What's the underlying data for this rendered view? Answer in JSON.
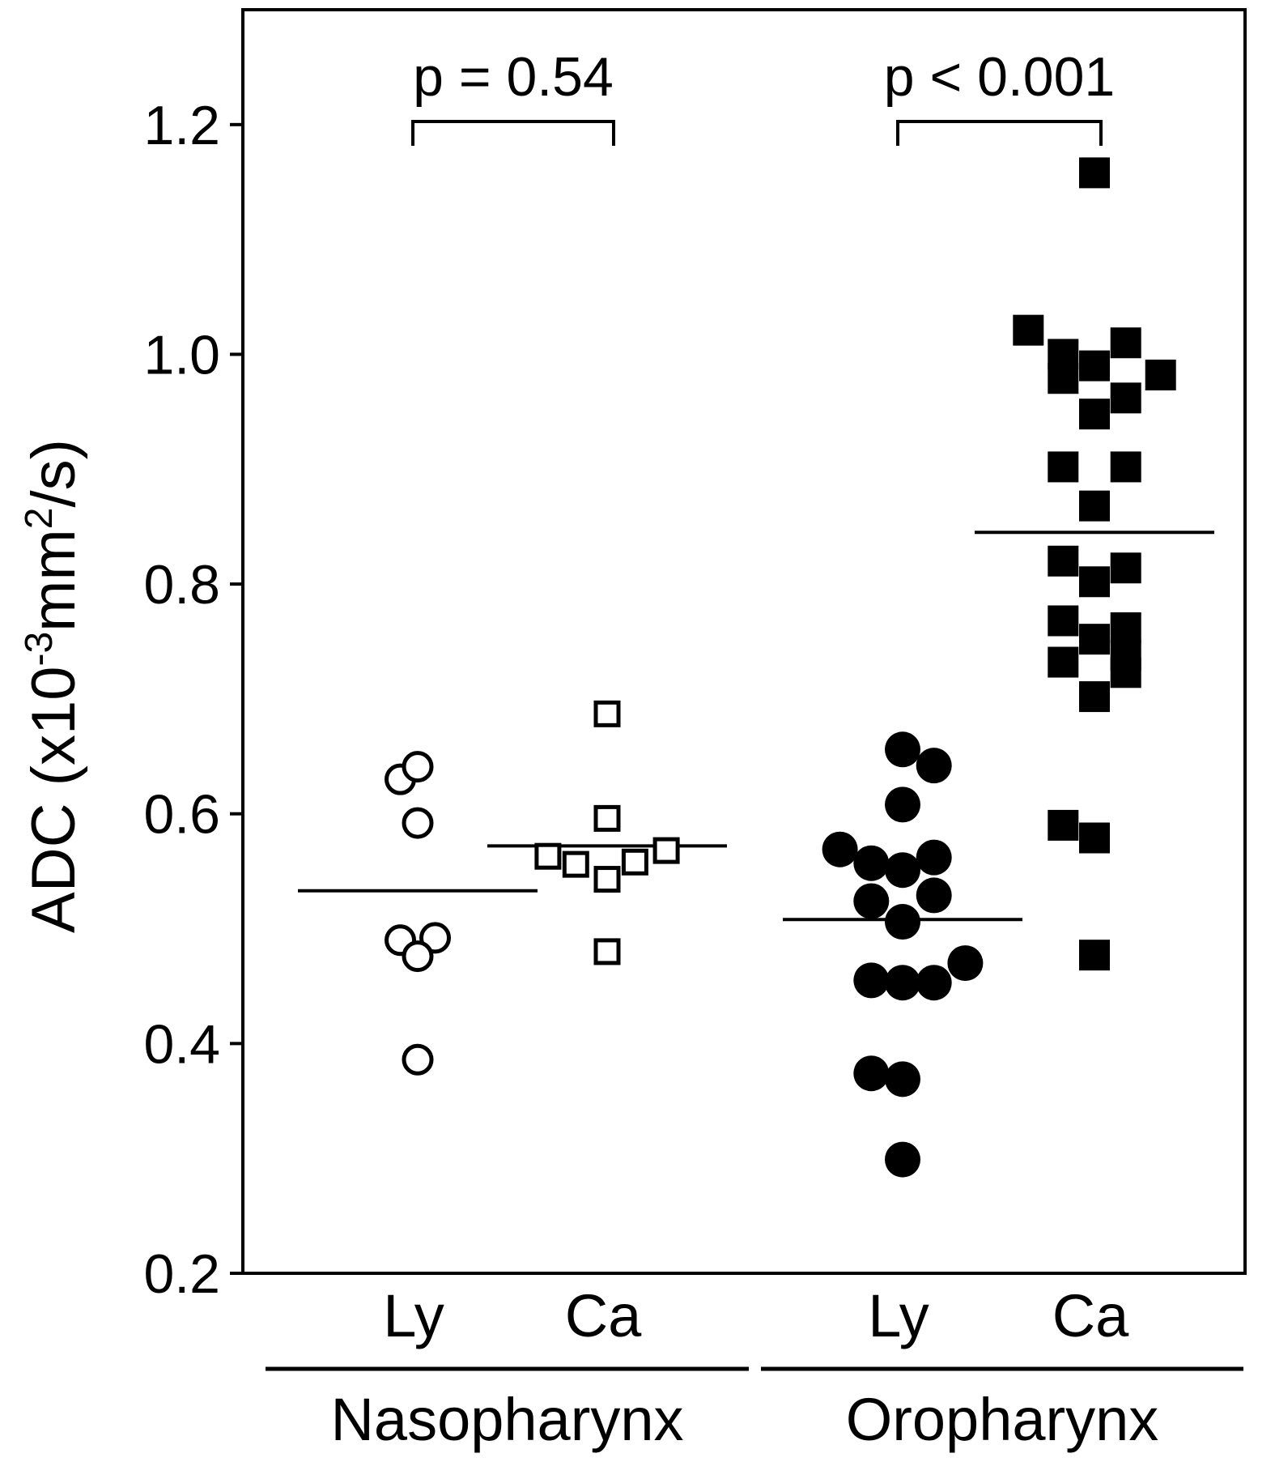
{
  "chart_data": {
    "type": "scatter",
    "ylabel": "ADC (x10",
    "ylabel_exp": "-3",
    "ylabel_mid": "mm",
    "ylabel_exp2": "2",
    "ylabel_end": "/s)",
    "ylim": [
      0.2,
      1.3
    ],
    "yticks": [
      "0.2",
      "0.4",
      "0.6",
      "0.8",
      "1.0",
      "1.2"
    ],
    "yticks_values": [
      0.2,
      0.4,
      0.6,
      0.8,
      1.0,
      1.2
    ],
    "grid": false,
    "groups": [
      {
        "label": "Nasopharynx",
        "categories": [
          "Ly",
          "Ca"
        ]
      },
      {
        "label": "Oropharynx",
        "categories": [
          "Ly",
          "Ca"
        ]
      }
    ],
    "comparisons": [
      {
        "label": "p = 0.54",
        "group": "Nasopharynx"
      },
      {
        "label": "p < 0.001",
        "group": "Oropharynx"
      }
    ],
    "series": [
      {
        "group": "Nasopharynx",
        "category": "Ly",
        "marker": "circle",
        "filled": false,
        "median": 0.533,
        "points": [
          {
            "offset": -0.5,
            "y": 0.63
          },
          {
            "offset": 0.0,
            "y": 0.641
          },
          {
            "offset": 0.0,
            "y": 0.592
          },
          {
            "offset": -0.5,
            "y": 0.49
          },
          {
            "offset": 0.5,
            "y": 0.492
          },
          {
            "offset": 0.0,
            "y": 0.476
          },
          {
            "offset": 0.0,
            "y": 0.386
          }
        ]
      },
      {
        "group": "Nasopharynx",
        "category": "Ca",
        "marker": "square",
        "filled": false,
        "median": 0.572,
        "points": [
          {
            "offset": 0.0,
            "y": 0.687
          },
          {
            "offset": 0.0,
            "y": 0.596
          },
          {
            "offset": -1.7,
            "y": 0.563
          },
          {
            "offset": -0.9,
            "y": 0.556
          },
          {
            "offset": 0.0,
            "y": 0.543
          },
          {
            "offset": 0.8,
            "y": 0.558
          },
          {
            "offset": 1.7,
            "y": 0.568
          },
          {
            "offset": 0.0,
            "y": 0.48
          }
        ]
      },
      {
        "group": "Oropharynx",
        "category": "Ly",
        "marker": "circle",
        "filled": true,
        "median": 0.508,
        "points": [
          {
            "offset": 0.0,
            "y": 0.656
          },
          {
            "offset": 0.9,
            "y": 0.642
          },
          {
            "offset": 0.0,
            "y": 0.608
          },
          {
            "offset": -1.8,
            "y": 0.569
          },
          {
            "offset": -0.9,
            "y": 0.557
          },
          {
            "offset": 0.0,
            "y": 0.551
          },
          {
            "offset": 0.9,
            "y": 0.562
          },
          {
            "offset": -0.9,
            "y": 0.524
          },
          {
            "offset": 0.9,
            "y": 0.529
          },
          {
            "offset": 0.0,
            "y": 0.506
          },
          {
            "offset": 1.8,
            "y": 0.47
          },
          {
            "offset": -0.9,
            "y": 0.455
          },
          {
            "offset": 0.0,
            "y": 0.453
          },
          {
            "offset": 0.9,
            "y": 0.453
          },
          {
            "offset": -0.9,
            "y": 0.374
          },
          {
            "offset": 0.0,
            "y": 0.369
          },
          {
            "offset": 0.0,
            "y": 0.299
          }
        ]
      },
      {
        "group": "Oropharynx",
        "category": "Ca",
        "marker": "square",
        "filled": true,
        "median": 0.845,
        "points": [
          {
            "offset": 0.0,
            "y": 1.158
          },
          {
            "offset": -1.9,
            "y": 1.021
          },
          {
            "offset": -0.9,
            "y": 1.0
          },
          {
            "offset": -0.9,
            "y": 0.979
          },
          {
            "offset": 0.0,
            "y": 0.99
          },
          {
            "offset": 0.9,
            "y": 1.01
          },
          {
            "offset": 1.9,
            "y": 0.982
          },
          {
            "offset": 0.9,
            "y": 0.962
          },
          {
            "offset": 0.0,
            "y": 0.948
          },
          {
            "offset": -0.9,
            "y": 0.902
          },
          {
            "offset": 0.9,
            "y": 0.902
          },
          {
            "offset": 0.0,
            "y": 0.868
          },
          {
            "offset": -0.9,
            "y": 0.82
          },
          {
            "offset": 0.9,
            "y": 0.814
          },
          {
            "offset": 0.0,
            "y": 0.802
          },
          {
            "offset": -0.9,
            "y": 0.768
          },
          {
            "offset": 0.9,
            "y": 0.762
          },
          {
            "offset": 0.0,
            "y": 0.752
          },
          {
            "offset": -0.9,
            "y": 0.732
          },
          {
            "offset": 0.9,
            "y": 0.738
          },
          {
            "offset": 0.9,
            "y": 0.723
          },
          {
            "offset": 0.0,
            "y": 0.702
          },
          {
            "offset": -0.9,
            "y": 0.59
          },
          {
            "offset": 0.0,
            "y": 0.579
          },
          {
            "offset": 0.0,
            "y": 0.477
          }
        ]
      }
    ]
  }
}
